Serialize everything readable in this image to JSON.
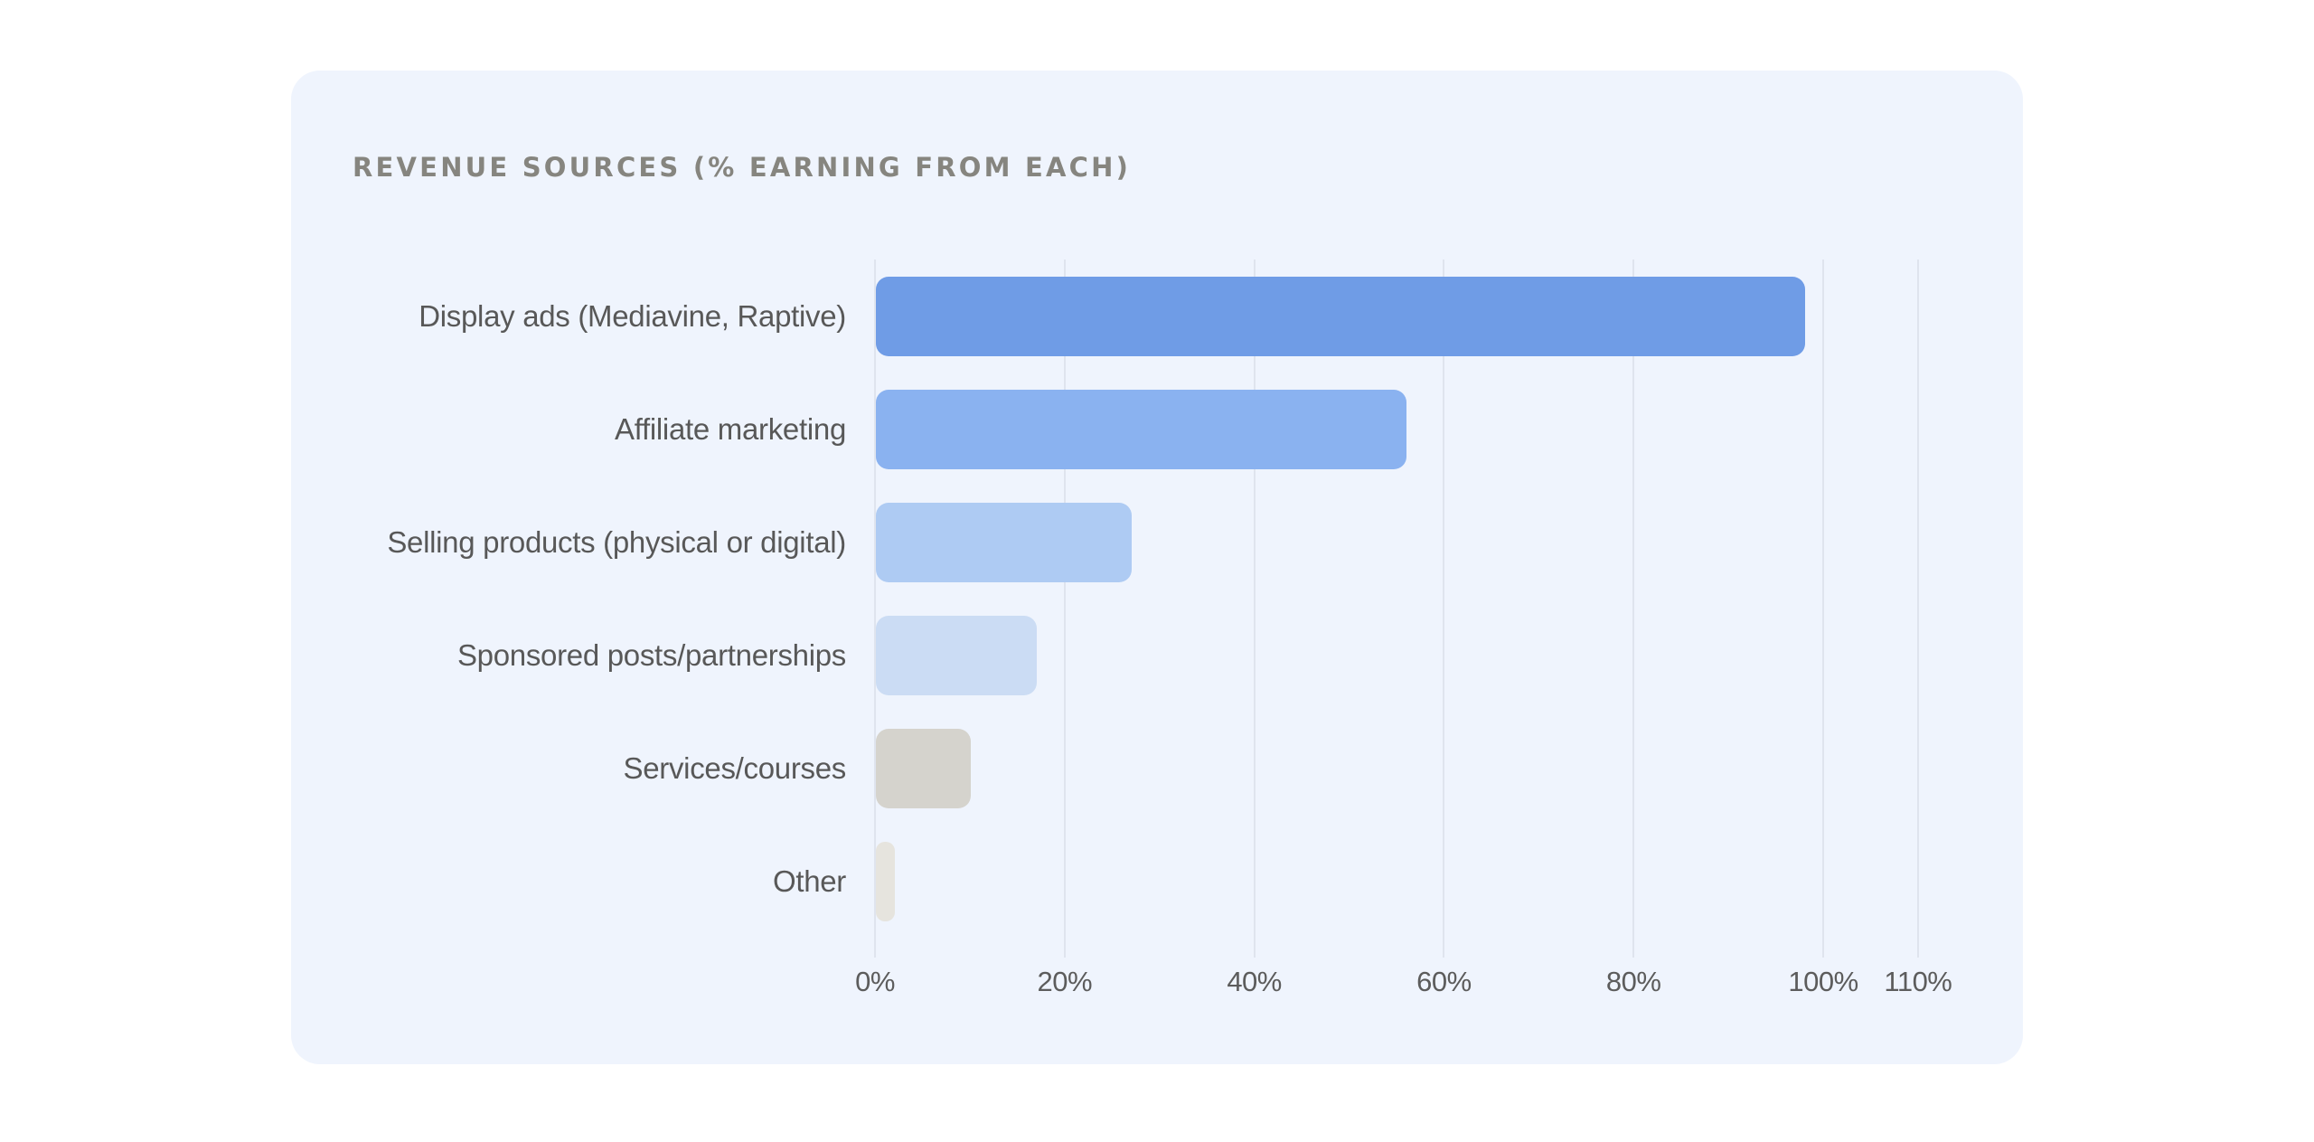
{
  "card": {
    "title": "REVENUE SOURCES (% EARNING FROM EACH)"
  },
  "axis": {
    "ticks": [
      {
        "label": "0%",
        "value": 0
      },
      {
        "label": "20%",
        "value": 20
      },
      {
        "label": "40%",
        "value": 40
      },
      {
        "label": "60%",
        "value": 60
      },
      {
        "label": "80%",
        "value": 80
      },
      {
        "label": "100%",
        "value": 100
      },
      {
        "label": "110%",
        "value": 110
      }
    ]
  },
  "bars": [
    {
      "label": "Display ads (Mediavine, Raptive)",
      "value": 98,
      "color": "#6f9ce6"
    },
    {
      "label": "Affiliate marketing",
      "value": 56,
      "color": "#8ab2f0"
    },
    {
      "label": "Selling products (physical or digital)",
      "value": 27,
      "color": "#aecbf3"
    },
    {
      "label": "Sponsored posts/partnerships",
      "value": 17,
      "color": "#cbdcf4"
    },
    {
      "label": "Services/courses",
      "value": 10,
      "color": "#d5d3cd"
    },
    {
      "label": "Other",
      "value": 2,
      "color": "#e6e4de"
    }
  ],
  "chart_data": {
    "type": "bar",
    "orientation": "horizontal",
    "title": "REVENUE SOURCES (% EARNING FROM EACH)",
    "categories": [
      "Display ads (Mediavine, Raptive)",
      "Affiliate marketing",
      "Selling products (physical or digital)",
      "Sponsored posts/partnerships",
      "Services/courses",
      "Other"
    ],
    "values": [
      98,
      56,
      27,
      17,
      10,
      2
    ],
    "xlabel": "",
    "ylabel": "",
    "xlim": [
      0,
      110
    ],
    "xticks": [
      "0%",
      "20%",
      "40%",
      "60%",
      "80%",
      "100%",
      "110%"
    ],
    "grid": "vertical",
    "legend": null,
    "colors": [
      "#6f9ce6",
      "#8ab2f0",
      "#aecbf3",
      "#cbdcf4",
      "#d5d3cd",
      "#e6e4de"
    ]
  }
}
